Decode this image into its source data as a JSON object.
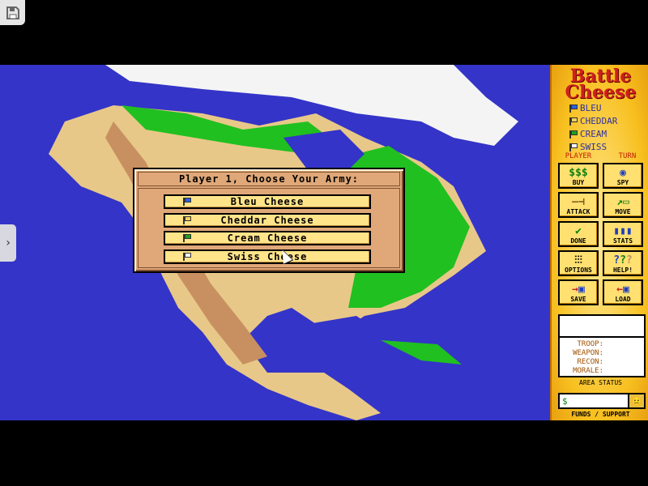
{
  "game_title": [
    "Battle",
    "Cheese"
  ],
  "players": [
    {
      "label": "BLEU",
      "flag_color": "#3060e0"
    },
    {
      "label": "CHEDDAR",
      "flag_color": "#f0d060"
    },
    {
      "label": "CREAM",
      "flag_color": "#20a020"
    },
    {
      "label": "SWISS",
      "flag_color": "#ffffff"
    }
  ],
  "turn_labels": {
    "player": "PLAYER",
    "turn": "TURN"
  },
  "buttons": [
    {
      "label": "BUY",
      "icon": "money-icon"
    },
    {
      "label": "SPY",
      "icon": "eye-icon"
    },
    {
      "label": "ATTACK",
      "icon": "sword-icon"
    },
    {
      "label": "MOVE",
      "icon": "move-icon"
    },
    {
      "label": "DONE",
      "icon": "checkmark-icon"
    },
    {
      "label": "STATS",
      "icon": "bar-chart-icon"
    },
    {
      "label": "OPTIONS",
      "icon": "sliders-icon"
    },
    {
      "label": "HELP!",
      "icon": "question-icon"
    },
    {
      "label": "SAVE",
      "icon": "save-icon"
    },
    {
      "label": "LOAD",
      "icon": "load-icon"
    }
  ],
  "area_status": {
    "fields": [
      "TROOP:",
      "WEAPON:",
      "RECON:",
      "MORALE:"
    ],
    "caption": "AREA STATUS"
  },
  "funds": {
    "symbol": "$",
    "caption": "FUNDS / SUPPORT"
  },
  "dialog": {
    "title": "Player 1, Choose Your Army:",
    "options": [
      {
        "label": "Bleu Cheese",
        "flag_color": "#3060e0"
      },
      {
        "label": "Cheddar Cheese",
        "flag_color": "#f0d060"
      },
      {
        "label": "Cream Cheese",
        "flag_color": "#20a020"
      },
      {
        "label": "Swiss Cheese",
        "flag_color": "#ffffff"
      }
    ]
  },
  "colors": {
    "ocean": "#3434c8",
    "land": "#e8c888",
    "forest": "#20c020",
    "snow": "#ffffff",
    "panel": "#f8c020"
  }
}
